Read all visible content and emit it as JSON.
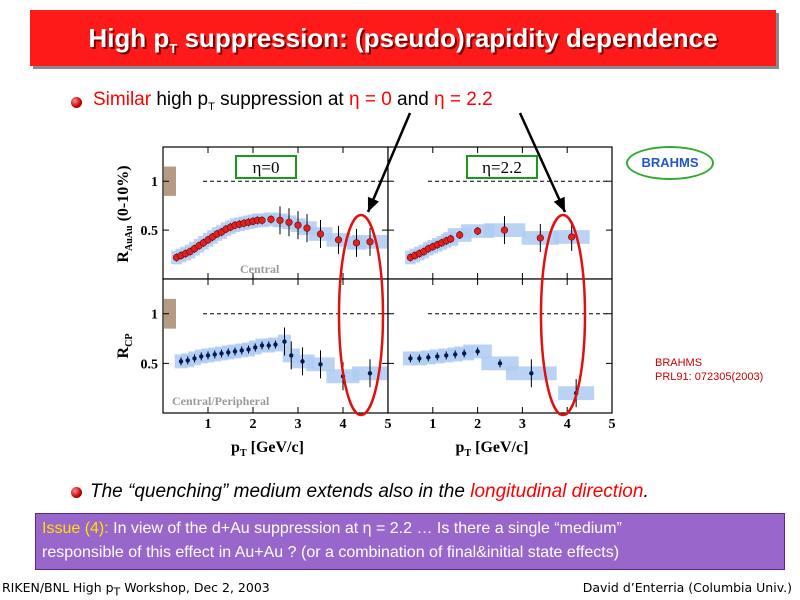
{
  "slide": {
    "title_main": "High p",
    "title_sub": "T",
    "title_rest": " suppression: (pseudo)rapidity dependence",
    "bullet1": {
      "word_red": "Similar",
      "t1": " high p",
      "sub": "T",
      "t2": " suppression at ",
      "eta0": "η = 0",
      "and": " and ",
      "eta22": "η = 2.2"
    },
    "bullet2": {
      "t1": "The “quenching” medium extends also in the ",
      "red": "longitudinal direction",
      "t2": "."
    },
    "issue": {
      "label": "Issue (4):",
      "text1": " In view of the d+Au suppression at η = 2.2 … Is there a single “medium”",
      "text2": "responsible of this effect in Au+Au ? (or a combination of final&initial state effects)"
    },
    "footer_left": "RIKEN/BNL High p",
    "footer_left_sub": "T",
    "footer_left_rest": " Workshop, Dec 2, 2003",
    "footer_right": "David d’Enterria (Columbia Univ.)",
    "brahms_logo": "BRAHMS",
    "reference_line1": "BRAHMS",
    "reference_line2": "PRL91: 072305(2003)"
  },
  "colors": {
    "title_bg": "#ff1a1a",
    "accent_red": "#ff0000",
    "issue_bg": "#9966cc",
    "issue_label": "#ffe000",
    "band": "#aecbf2",
    "point_red": "#dd2222"
  },
  "chart_data": {
    "type": "scatter",
    "panels": [
      {
        "label": "η=0",
        "ylabel": "R",
        "ylabel_sub": "AuAu",
        "ylabel_tail": " (0-10%)",
        "tag": "Central",
        "ylim": [
          0,
          1.35
        ],
        "xlim": [
          0,
          5
        ],
        "x": [
          0.3,
          0.4,
          0.5,
          0.6,
          0.7,
          0.8,
          0.9,
          1.0,
          1.1,
          1.2,
          1.3,
          1.4,
          1.5,
          1.6,
          1.7,
          1.8,
          1.9,
          2.0,
          2.1,
          2.2,
          2.4,
          2.6,
          2.8,
          3.0,
          3.2,
          3.5,
          3.9,
          4.3,
          4.6
        ],
        "y": [
          0.22,
          0.24,
          0.26,
          0.28,
          0.31,
          0.34,
          0.37,
          0.4,
          0.43,
          0.46,
          0.48,
          0.51,
          0.53,
          0.55,
          0.56,
          0.57,
          0.58,
          0.59,
          0.6,
          0.6,
          0.61,
          0.6,
          0.58,
          0.55,
          0.52,
          0.46,
          0.4,
          0.37,
          0.38
        ]
      },
      {
        "label": "η=2.2",
        "tag": "",
        "ylim": [
          0,
          1.35
        ],
        "xlim": [
          0,
          5
        ],
        "x": [
          0.5,
          0.6,
          0.7,
          0.8,
          0.9,
          1.0,
          1.1,
          1.2,
          1.3,
          1.4,
          1.6,
          2.0,
          2.6,
          3.4,
          4.1
        ],
        "y": [
          0.22,
          0.24,
          0.26,
          0.28,
          0.31,
          0.33,
          0.35,
          0.37,
          0.39,
          0.41,
          0.45,
          0.49,
          0.5,
          0.42,
          0.43
        ]
      },
      {
        "ylabel": "R",
        "ylabel_sub": "CP",
        "tag": "Central/Peripheral",
        "ylim": [
          0,
          1.35
        ],
        "xlim": [
          0,
          5
        ],
        "x": [
          0.4,
          0.55,
          0.7,
          0.85,
          1.0,
          1.15,
          1.3,
          1.45,
          1.6,
          1.75,
          1.9,
          2.05,
          2.2,
          2.35,
          2.5,
          2.7,
          2.85,
          3.1,
          3.5,
          4.0,
          4.6
        ],
        "y": [
          0.52,
          0.53,
          0.55,
          0.57,
          0.58,
          0.59,
          0.6,
          0.61,
          0.62,
          0.63,
          0.64,
          0.66,
          0.68,
          0.68,
          0.69,
          0.72,
          0.58,
          0.52,
          0.49,
          0.37,
          0.4
        ]
      },
      {
        "tag": "",
        "ylim": [
          0,
          1.35
        ],
        "xlim": [
          0,
          5
        ],
        "x": [
          0.5,
          0.7,
          0.9,
          1.1,
          1.3,
          1.5,
          1.7,
          2.0,
          2.5,
          3.2,
          4.2
        ],
        "y": [
          0.55,
          0.55,
          0.56,
          0.57,
          0.58,
          0.59,
          0.6,
          0.62,
          0.5,
          0.4,
          0.2
        ]
      }
    ],
    "yticks": [
      "0.5",
      "1"
    ],
    "xticks": [
      "1",
      "2",
      "3",
      "4",
      "5"
    ],
    "xlabel": "p",
    "xlabel_sub": "T",
    "xlabel_tail": " [GeV/c]"
  }
}
